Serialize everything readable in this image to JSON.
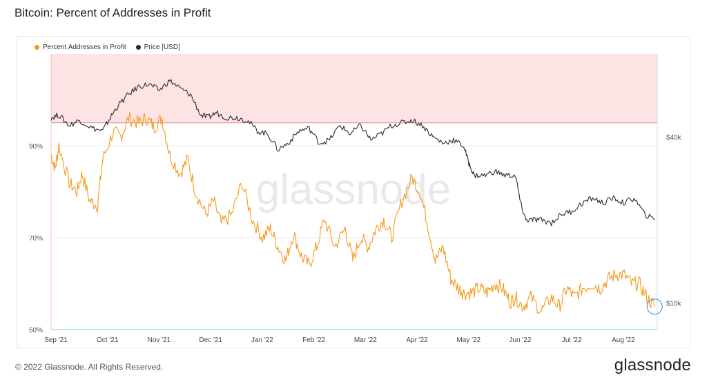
{
  "title": "Bitcoin: Percent of Addresses in Profit",
  "footer": "© 2022 Glassnode. All Rights Reserved.",
  "brand": "glassnode",
  "watermark": "glassnode",
  "chart_data": {
    "type": "line",
    "y_left": {
      "ticks": [
        "90%",
        "70%",
        "50%"
      ],
      "values": [
        90,
        70,
        50
      ],
      "range": [
        50,
        110
      ]
    },
    "y_right": {
      "ticks": [
        "$40k",
        "$10k"
      ],
      "values": [
        40000,
        10000
      ],
      "scale": "log",
      "range": [
        8000,
        80000
      ]
    },
    "x_ticks": [
      "Sep '21",
      "Oct '21",
      "Nov '21",
      "Dec '21",
      "Jan '22",
      "Feb '22",
      "Mar '22",
      "Apr '22",
      "May '22",
      "Jun '22",
      "Jul '22",
      "Aug '22"
    ],
    "threshold_band": {
      "from": 95,
      "to": 110,
      "color": "#fde3e3"
    },
    "series": [
      {
        "name": "Percent Addresses in Profit",
        "color": "#f39a1e",
        "axis": "left",
        "x": [
          0,
          0.08,
          0.15,
          0.35,
          0.5,
          0.6,
          0.75,
          0.9,
          1.0,
          1.2,
          1.35,
          1.5,
          1.7,
          1.85,
          2.0,
          2.15,
          2.3,
          2.5,
          2.65,
          2.8,
          3.0,
          3.15,
          3.3,
          3.5,
          3.7,
          3.9,
          4.1,
          4.25,
          4.4,
          4.55,
          4.7,
          4.85,
          5.0,
          5.15,
          5.3,
          5.5,
          5.7,
          5.85,
          6.0,
          6.15,
          6.3,
          6.45,
          6.6,
          6.8,
          7.0,
          7.15,
          7.3,
          7.45,
          7.6,
          7.75,
          7.9,
          8.0,
          8.15,
          8.3,
          8.45,
          8.6,
          8.75,
          8.9,
          9.0,
          9.15,
          9.3,
          9.5,
          9.7,
          9.85,
          10.0,
          10.15,
          10.3,
          10.5,
          10.65,
          10.8,
          10.95,
          11.1,
          11.25,
          11.4,
          11.55,
          11.7
        ],
        "y": [
          88,
          85,
          90,
          82,
          80,
          84,
          78,
          77,
          87,
          93,
          92,
          96,
          95,
          96,
          94,
          96,
          88,
          84,
          87,
          80,
          75,
          78,
          73,
          75,
          82,
          74,
          70,
          72,
          68,
          65,
          71,
          66,
          64,
          68,
          74,
          68,
          72,
          65,
          70,
          68,
          72,
          74,
          70,
          78,
          83,
          80,
          73,
          65,
          68,
          61,
          59,
          58,
          58,
          59,
          58,
          60,
          59,
          56,
          57,
          55,
          57,
          54,
          57,
          55,
          59,
          57,
          59,
          60,
          59,
          61,
          62,
          62,
          60,
          60,
          57,
          55
        ],
        "points": 11,
        "note": "values approximate"
      },
      {
        "name": "Price [USD]",
        "color": "#2b2b2b",
        "axis": "right",
        "x": [
          0,
          0.15,
          0.35,
          0.55,
          0.8,
          1.0,
          1.15,
          1.3,
          1.5,
          1.7,
          1.9,
          2.1,
          2.3,
          2.5,
          2.7,
          2.9,
          3.05,
          3.2,
          3.4,
          3.6,
          3.8,
          4.0,
          4.2,
          4.4,
          4.6,
          4.8,
          5.0,
          5.2,
          5.4,
          5.6,
          5.8,
          6.0,
          6.2,
          6.4,
          6.6,
          6.8,
          7.0,
          7.2,
          7.4,
          7.6,
          7.8,
          8.0,
          8.1,
          8.2,
          8.4,
          8.6,
          8.8,
          9.0,
          9.1,
          9.2,
          9.35,
          9.5,
          9.7,
          9.9,
          10.1,
          10.3,
          10.5,
          10.7,
          10.9,
          11.1,
          11.3,
          11.5,
          11.7
        ],
        "y": [
          47000,
          48000,
          44000,
          46000,
          43000,
          42000,
          47000,
          52000,
          57000,
          61000,
          62000,
          59000,
          64000,
          60000,
          57000,
          48000,
          47000,
          49000,
          47000,
          47000,
          46000,
          42000,
          41000,
          36000,
          38000,
          42000,
          43000,
          38000,
          39000,
          44000,
          41000,
          44000,
          39000,
          41000,
          44000,
          45000,
          46000,
          44000,
          40000,
          38000,
          39000,
          37000,
          32000,
          29000,
          29000,
          30000,
          29000,
          29000,
          23000,
          20000,
          20000,
          20000,
          19500,
          21000,
          21500,
          23000,
          24000,
          23000,
          24000,
          23000,
          24000,
          21000,
          20000
        ],
        "note": "values approximate"
      }
    ],
    "grid": true,
    "legend_placement": "top-left"
  }
}
